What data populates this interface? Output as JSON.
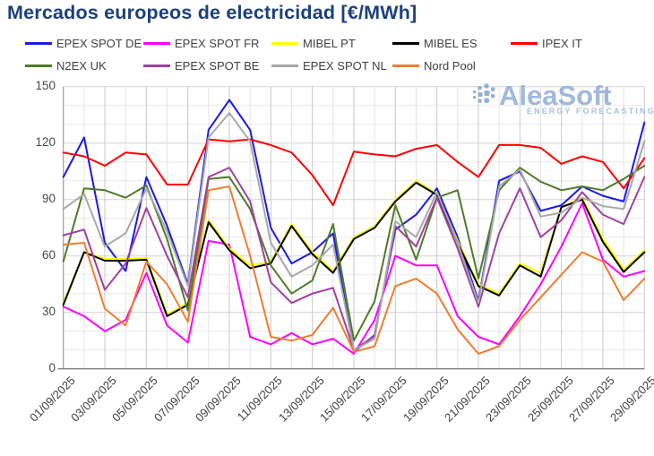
{
  "title": "Mercados europeos de electricidad [€/MWh]",
  "watermark": {
    "name": "AleaSoft",
    "tagline": "ENERGY FORECASTING"
  },
  "chart_data": {
    "type": "line",
    "title": "Mercados europeos de electricidad [€/MWh]",
    "ylim": [
      0,
      150
    ],
    "y_ticks": [
      0,
      30,
      60,
      90,
      120,
      150
    ],
    "grid": "both, minor every 10 horizontal, every day vertical",
    "legend_position": "top, two rows",
    "x_unit": "day of September 2025, 29 daily points (01/09/2025 - 29/09/2025)",
    "x_tick_labels": [
      "01/09/2025",
      "03/09/2025",
      "05/09/2025",
      "07/09/2025",
      "09/09/2025",
      "11/09/2025",
      "13/09/2025",
      "15/09/2025",
      "17/09/2025",
      "19/09/2025",
      "21/09/2025",
      "23/09/2025",
      "25/09/2025",
      "27/09/2025",
      "29/09/2025"
    ],
    "series": [
      {
        "name": "EPEX SPOT DE",
        "color": "#1a1ae8",
        "values": [
          102,
          123,
          67,
          52,
          102,
          76,
          45,
          127,
          143,
          127,
          75,
          56,
          62,
          72,
          9,
          18,
          74,
          82,
          96,
          70,
          36,
          100,
          105,
          84,
          87,
          97,
          92,
          89,
          131
        ]
      },
      {
        "name": "EPEX SPOT FR",
        "color": "#ff00ff",
        "values": [
          33,
          28,
          20,
          26,
          51,
          23,
          14,
          68,
          66,
          17,
          13,
          19,
          13,
          16,
          8,
          26,
          60,
          55,
          55,
          28,
          17,
          13,
          28,
          45,
          65,
          88,
          58,
          49,
          52
        ]
      },
      {
        "name": "MIBEL PT",
        "color": "#ffff00",
        "values": [
          35,
          62,
          58.5,
          58.5,
          59,
          29,
          35,
          79,
          64,
          55,
          57,
          77,
          62,
          52,
          70,
          76,
          90,
          100,
          93,
          68,
          45,
          40,
          56,
          51,
          86,
          91,
          69,
          53,
          63
        ]
      },
      {
        "name": "MIBEL ES",
        "color": "#000000",
        "values": [
          34,
          62,
          57.5,
          57.5,
          58,
          28,
          34,
          78,
          63,
          53.5,
          56,
          76,
          61,
          51,
          69,
          75,
          89,
          99,
          92.5,
          67,
          44,
          39,
          55,
          49,
          86,
          90,
          67.5,
          51.5,
          62
        ]
      },
      {
        "name": "IPEX IT",
        "color": "#ff0000",
        "values": [
          115,
          113,
          108,
          115,
          114,
          98,
          98,
          122,
          121,
          122,
          119,
          115,
          103,
          87,
          115.5,
          114,
          113,
          117,
          119,
          110,
          102,
          119,
          119,
          117.5,
          109,
          113,
          110,
          96,
          112
        ]
      },
      {
        "name": "N2EX UK",
        "color": "#4e7b28",
        "values": [
          57,
          96,
          95,
          91,
          97.5,
          69,
          31,
          101,
          102,
          85,
          55,
          40,
          47,
          77,
          15,
          36,
          87,
          58,
          91,
          95,
          48,
          95,
          107,
          99.5,
          95,
          97,
          95,
          101,
          108
        ]
      },
      {
        "name": "EPEX SPOT BE",
        "color": "#a040a0",
        "values": [
          71,
          74,
          42,
          56,
          85.5,
          60,
          38,
          102,
          107,
          89,
          46,
          35,
          40,
          43,
          10,
          17.5,
          76,
          65,
          91,
          64,
          33,
          72,
          96,
          70,
          79,
          94,
          82,
          77,
          102
        ]
      },
      {
        "name": "EPEX SPOT NL",
        "color": "#a8a8a8",
        "values": [
          85,
          93,
          65,
          72,
          96,
          73,
          44,
          123,
          136,
          121,
          67,
          49,
          55,
          66,
          10,
          16,
          78.5,
          70,
          94,
          67,
          35,
          97,
          106,
          81,
          83,
          91,
          86.5,
          85,
          121
        ]
      },
      {
        "name": "Nord Pool",
        "color": "#ed7d31",
        "values": [
          66,
          67,
          32,
          23,
          57,
          45,
          25,
          95,
          97,
          60,
          17,
          15,
          18,
          32.5,
          9,
          12,
          44,
          48,
          40,
          21,
          8,
          12,
          26,
          38,
          50,
          62,
          57,
          36.5,
          48
        ]
      }
    ]
  }
}
